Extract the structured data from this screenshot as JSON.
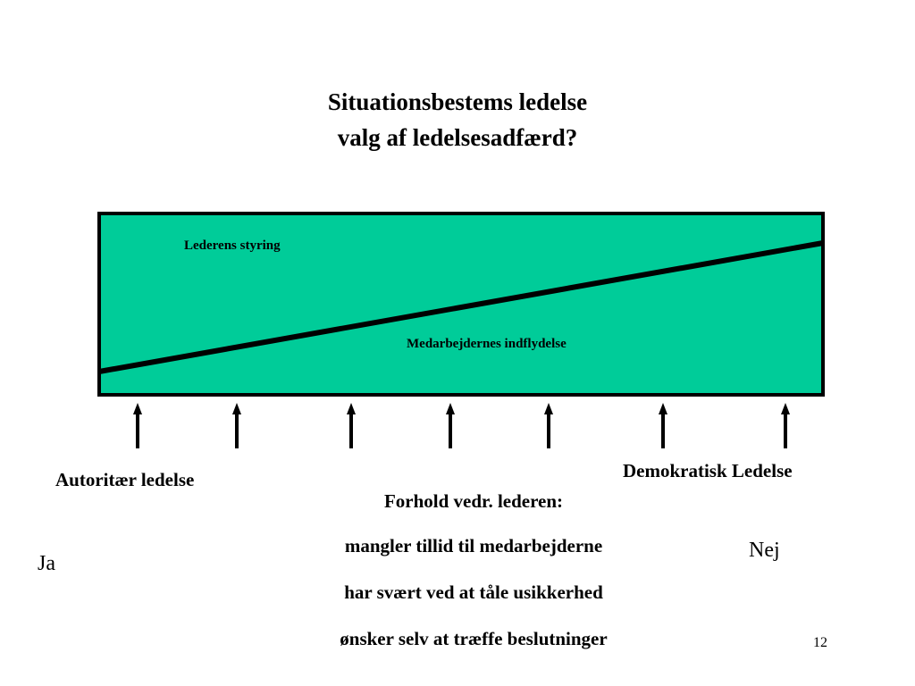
{
  "title": {
    "line1": "Situationsbestems ledelse",
    "line2": "valg af ledelsesadfærd?"
  },
  "diagram": {
    "box_fill_color": "#00CC99",
    "line_color": "#000000",
    "upper_region_label": "Lederens styring",
    "lower_region_label": "Medarbejdernes indflydelse",
    "arrow_count": 7
  },
  "scale": {
    "left_label": "Autoritær ledelse",
    "right_label": "Demokratisk Ledelse"
  },
  "conditions": {
    "heading": "Forhold vedr. lederen:",
    "items": [
      "mangler tillid til medarbejderne",
      "har svært ved at tåle usikkerhed",
      "ønsker selv at træffe beslutninger"
    ]
  },
  "answers": {
    "yes": "Ja",
    "no": "Nej"
  },
  "page_number": "12"
}
